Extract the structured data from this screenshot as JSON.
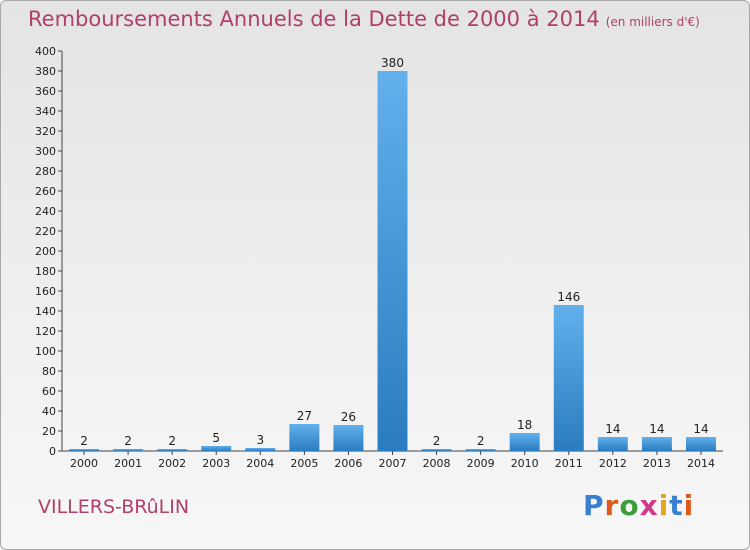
{
  "title": "Remboursements Annuels de la Dette de 2000 à 2014",
  "unit": "(en milliers d'€)",
  "commune": "VILLERS-BRûLIN",
  "logo": {
    "letters": [
      "P",
      "r",
      "o",
      "x",
      "i",
      "t",
      "i"
    ],
    "colors": [
      "#3a7fcf",
      "#e05a1c",
      "#3a9f3a",
      "#d03a8a",
      "#e0a81c",
      "#3a7fcf",
      "#e05a1c"
    ]
  },
  "colors": {
    "title": "#b0406a",
    "bar_light": "#62b0ec",
    "bar_dark": "#2a7cc0"
  },
  "chart_data": {
    "type": "bar",
    "categories": [
      "2000",
      "2001",
      "2002",
      "2003",
      "2004",
      "2005",
      "2006",
      "2007",
      "2008",
      "2009",
      "2010",
      "2011",
      "2012",
      "2013",
      "2014"
    ],
    "values": [
      2,
      2,
      2,
      5,
      3,
      27,
      26,
      380,
      2,
      2,
      18,
      146,
      14,
      14,
      14
    ],
    "ylim": [
      0,
      400
    ],
    "yticks": [
      0,
      20,
      40,
      60,
      80,
      100,
      120,
      140,
      160,
      180,
      200,
      220,
      240,
      260,
      280,
      300,
      320,
      340,
      360,
      380,
      400
    ],
    "grid": false,
    "data_labels": true
  }
}
